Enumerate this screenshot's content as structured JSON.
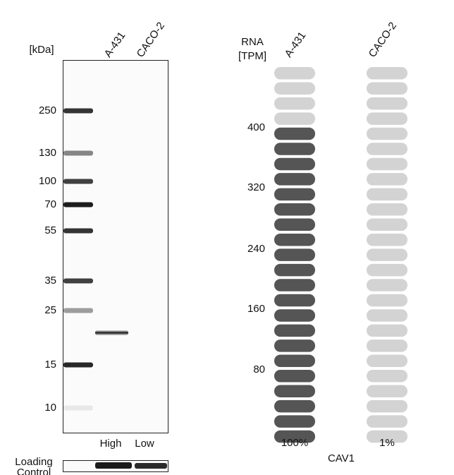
{
  "blot": {
    "unit_label": "[kDa]",
    "lanes": [
      "A-431",
      "CACO-2"
    ],
    "markers": [
      "250",
      "130",
      "100",
      "70",
      "55",
      "35",
      "25",
      "15",
      "10"
    ],
    "levels": [
      "High",
      "Low"
    ],
    "loading_control": [
      "Loading",
      "Control"
    ]
  },
  "rna": {
    "axis_label": [
      "RNA",
      "[TPM]"
    ],
    "columns": [
      "A-431",
      "CACO-2"
    ],
    "axis_ticks": [
      "400",
      "320",
      "240",
      "160",
      "80"
    ],
    "percent_labels": [
      "100%",
      "1%"
    ],
    "gene": "CAV1"
  }
}
